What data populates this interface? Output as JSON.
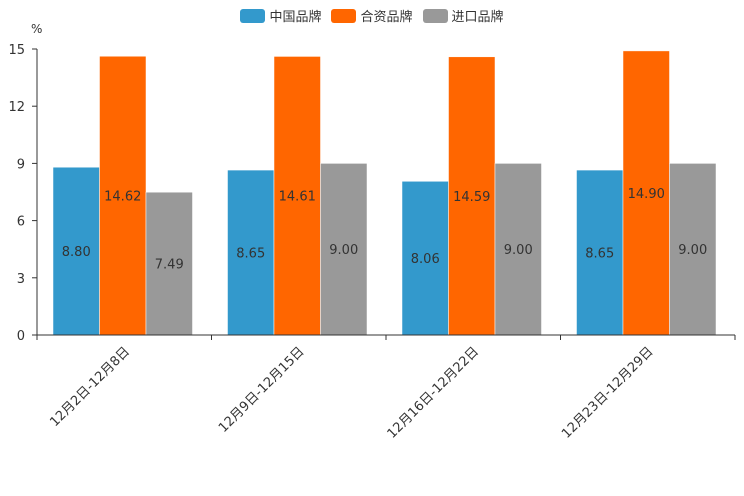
{
  "chart_data": {
    "type": "bar",
    "unit": "%",
    "categories": [
      "12月2日-12月8日",
      "12月9日-12月15日",
      "12月16日-12月22日",
      "12月23日-12月29日"
    ],
    "series": [
      {
        "name": "中国品牌",
        "color": "#3399cc",
        "values": [
          8.8,
          8.65,
          8.06,
          8.65
        ],
        "labels": [
          "8.80",
          "8.65",
          "8.06",
          "8.65"
        ]
      },
      {
        "name": "合资品牌",
        "color": "#ff6600",
        "values": [
          14.62,
          14.61,
          14.59,
          14.9
        ],
        "labels": [
          "14.62",
          "14.61",
          "14.59",
          "14.90"
        ]
      },
      {
        "name": "进口品牌",
        "color": "#999999",
        "values": [
          7.49,
          9.0,
          9.0,
          9.0
        ],
        "labels": [
          "7.49",
          "9.00",
          "9.00",
          "9.00"
        ]
      }
    ],
    "yticks": [
      0,
      3,
      6,
      9,
      12,
      15
    ],
    "ytick_labels": [
      "0",
      "3",
      "6",
      "9",
      "12",
      "15"
    ],
    "ylim": [
      0,
      15
    ],
    "legend_position": "top-center"
  }
}
